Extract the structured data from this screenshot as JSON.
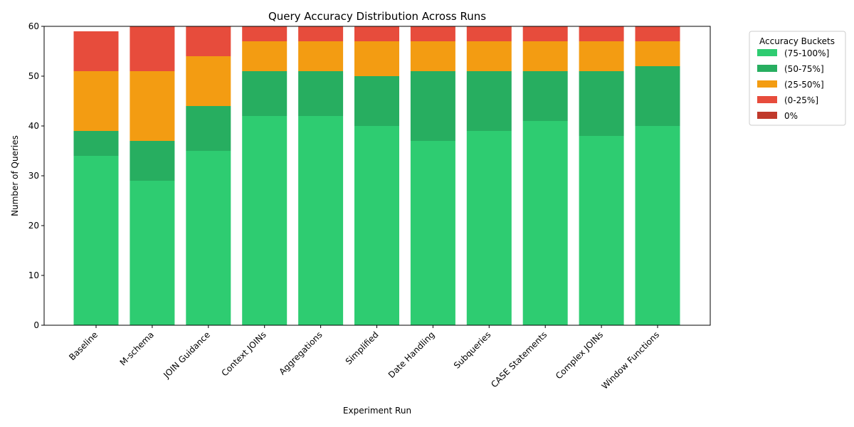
{
  "chart_data": {
    "type": "bar",
    "stacked": true,
    "title": "Query Accuracy Distribution Across Runs",
    "xlabel": "Experiment Run",
    "ylabel": "Number of Queries",
    "ylim": [
      0,
      60
    ],
    "yticks": [
      0,
      10,
      20,
      30,
      40,
      50,
      60
    ],
    "grid": false,
    "legend_title": "Accuracy Buckets",
    "legend_position": "outside-top-right",
    "categories": [
      "Baseline",
      "M-schema",
      "JOIN Guidance",
      "Context JOINs",
      "Aggregations",
      "Simplified",
      "Date Handling",
      "Subqueries",
      "CASE Statements",
      "Complex JOINs",
      "Window Functions"
    ],
    "series": [
      {
        "name": "(75-100%]",
        "color": "#2ecc71",
        "values": [
          34,
          29,
          35,
          42,
          42,
          40,
          37,
          39,
          41,
          38,
          40
        ]
      },
      {
        "name": "(50-75%]",
        "color": "#27ae60",
        "values": [
          5,
          8,
          9,
          9,
          9,
          10,
          14,
          12,
          10,
          13,
          12
        ]
      },
      {
        "name": "(25-50%]",
        "color": "#f39c12",
        "values": [
          12,
          14,
          10,
          6,
          6,
          7,
          6,
          6,
          6,
          6,
          5
        ]
      },
      {
        "name": "(0-25%]",
        "color": "#e74c3c",
        "values": [
          8,
          9,
          6,
          3,
          3,
          3,
          3,
          3,
          3,
          3,
          3
        ]
      },
      {
        "name": "0%",
        "color": "#c0392b",
        "values": [
          0,
          0,
          0,
          0,
          0,
          0,
          0,
          0,
          0,
          0,
          0
        ]
      }
    ]
  }
}
